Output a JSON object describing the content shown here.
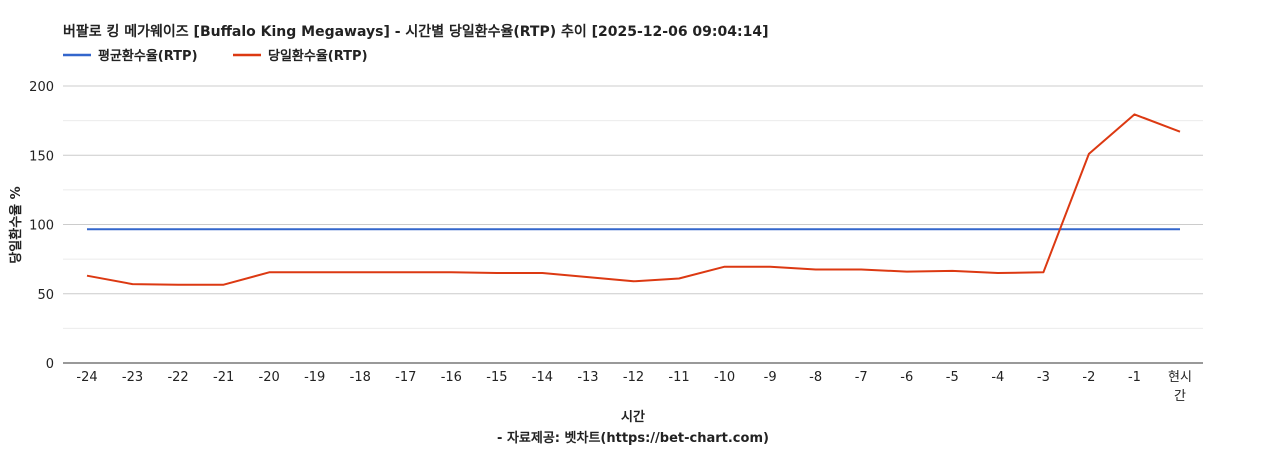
{
  "chart_data": {
    "type": "line",
    "title": "버팔로 킹 메가웨이즈 [Buffalo King Megaways] - 시간별 당일환수율(RTP) 추이 [2025-12-06 09:04:14]",
    "xlabel": "시간",
    "ylabel": "당일환수율 %",
    "source": "- 자료제공: 벳차트(https://bet-chart.com)",
    "categories": [
      "-24",
      "-23",
      "-22",
      "-21",
      "-20",
      "-19",
      "-18",
      "-17",
      "-16",
      "-15",
      "-14",
      "-13",
      "-12",
      "-11",
      "-10",
      "-9",
      "-8",
      "-7",
      "-6",
      "-5",
      "-4",
      "-3",
      "-2",
      "-1",
      "현시간"
    ],
    "category_label_lines": [
      [
        "-24"
      ],
      [
        "-23"
      ],
      [
        "-22"
      ],
      [
        "-21"
      ],
      [
        "-20"
      ],
      [
        "-19"
      ],
      [
        "-18"
      ],
      [
        "-17"
      ],
      [
        "-16"
      ],
      [
        "-15"
      ],
      [
        "-14"
      ],
      [
        "-13"
      ],
      [
        "-12"
      ],
      [
        "-11"
      ],
      [
        "-10"
      ],
      [
        "-9"
      ],
      [
        "-8"
      ],
      [
        "-7"
      ],
      [
        "-6"
      ],
      [
        "-5"
      ],
      [
        "-4"
      ],
      [
        "-3"
      ],
      [
        "-2"
      ],
      [
        "-1"
      ],
      [
        "현시",
        "간"
      ]
    ],
    "ylim": [
      0,
      200
    ],
    "yticks": [
      0,
      50,
      100,
      150,
      200
    ],
    "grid": true,
    "legend_position": "top-left",
    "series": [
      {
        "name": "평균환수율(RTP)",
        "color": "#3366cc",
        "values": [
          96.5,
          96.5,
          96.5,
          96.5,
          96.5,
          96.5,
          96.5,
          96.5,
          96.5,
          96.5,
          96.5,
          96.5,
          96.5,
          96.5,
          96.5,
          96.5,
          96.5,
          96.5,
          96.5,
          96.5,
          96.5,
          96.5,
          96.5,
          96.5,
          96.5
        ]
      },
      {
        "name": "당일환수율(RTP)",
        "color": "#dc3912",
        "values": [
          63,
          57,
          56.5,
          56.5,
          65.5,
          65.5,
          65.5,
          65.5,
          65.5,
          65,
          65,
          62,
          59,
          61,
          69.5,
          69.5,
          67.5,
          67.5,
          66,
          66.5,
          65,
          65.5,
          151,
          179.5,
          167
        ]
      }
    ]
  }
}
